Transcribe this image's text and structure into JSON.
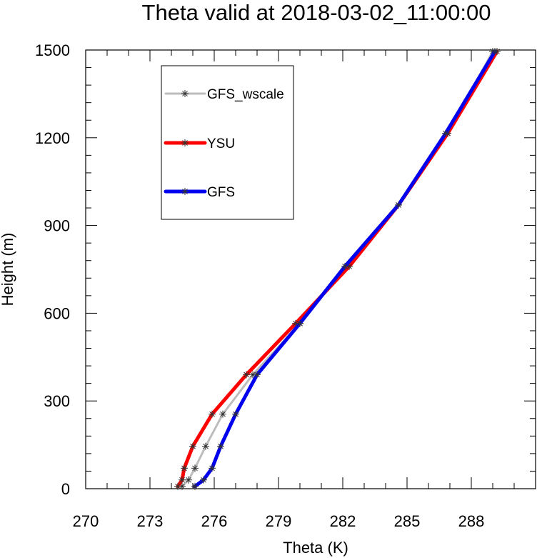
{
  "chart_data": {
    "type": "line",
    "title": "Theta valid at 2018-03-02_11:00:00",
    "xlabel": "Theta (K)",
    "ylabel": "Height (m)",
    "xlim": [
      270,
      291
    ],
    "ylim": [
      0,
      1500
    ],
    "xticks": [
      270,
      273,
      276,
      279,
      282,
      285,
      288
    ],
    "yticks": [
      0,
      300,
      600,
      900,
      1200,
      1500
    ],
    "grid": false,
    "legend_position": "top-left",
    "series": [
      {
        "name": "GFS_wscale",
        "color": "#bdbdbd",
        "points": [
          [
            274.5,
            8
          ],
          [
            274.8,
            30
          ],
          [
            275.1,
            70
          ],
          [
            275.6,
            145
          ],
          [
            276.4,
            255
          ],
          [
            277.8,
            390
          ],
          [
            280.0,
            565
          ],
          [
            282.2,
            760
          ],
          [
            284.6,
            970
          ],
          [
            286.9,
            1215
          ],
          [
            289.0,
            1495
          ]
        ]
      },
      {
        "name": "YSU",
        "color": "#ff0000",
        "points": [
          [
            274.3,
            8
          ],
          [
            274.5,
            30
          ],
          [
            274.6,
            70
          ],
          [
            275.0,
            145
          ],
          [
            275.9,
            255
          ],
          [
            277.5,
            390
          ],
          [
            279.8,
            565
          ],
          [
            282.3,
            760
          ],
          [
            284.6,
            970
          ],
          [
            286.9,
            1215
          ],
          [
            289.2,
            1495
          ]
        ]
      },
      {
        "name": "GFS",
        "color": "#0000ee",
        "points": [
          [
            275.1,
            8
          ],
          [
            275.5,
            30
          ],
          [
            275.9,
            70
          ],
          [
            276.3,
            145
          ],
          [
            277.0,
            255
          ],
          [
            278.0,
            390
          ],
          [
            280.0,
            565
          ],
          [
            282.1,
            760
          ],
          [
            284.6,
            970
          ],
          [
            286.8,
            1215
          ],
          [
            289.1,
            1495
          ]
        ]
      }
    ]
  }
}
